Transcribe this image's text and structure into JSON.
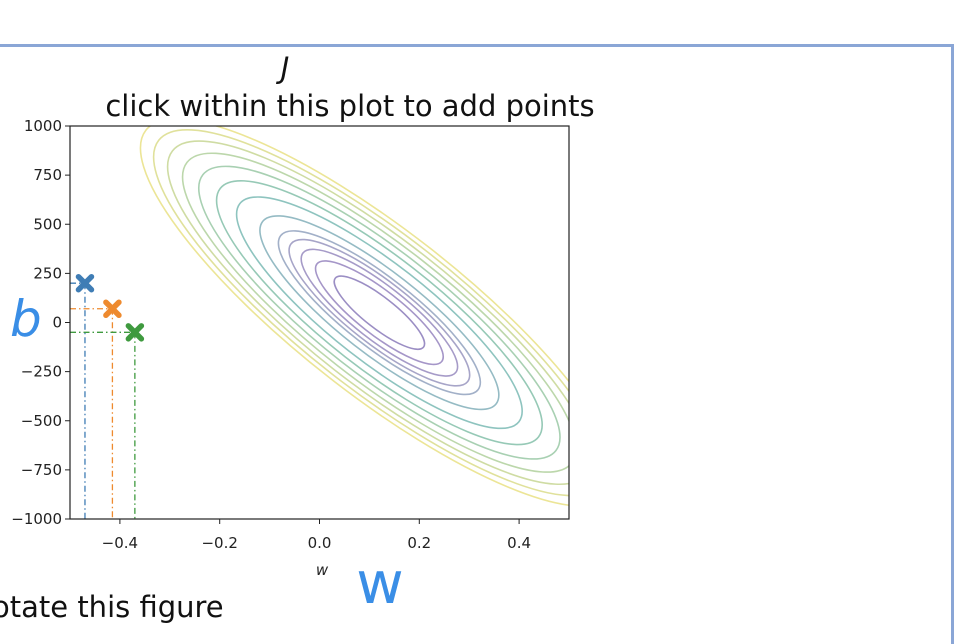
{
  "figure": {
    "annotation_b": "b",
    "annotation_w": "w",
    "caption": "otate this figure"
  },
  "chart_data": {
    "type": "contour",
    "title": "click within this plot to add points",
    "supertitle": "J",
    "xlabel": "w",
    "ylabel": "",
    "xlim": [
      -0.5,
      0.5
    ],
    "ylim": [
      -1000,
      1000
    ],
    "xticks": [
      -0.4,
      -0.2,
      0.0,
      0.2,
      0.4
    ],
    "xtick_labels": [
      "−0.4",
      "−0.2",
      "0.0",
      "0.2",
      "0.4"
    ],
    "yticks": [
      1000,
      750,
      500,
      250,
      0,
      -250,
      -500,
      -750,
      -1000
    ],
    "ytick_labels": [
      "1000",
      "750",
      "500",
      "250",
      "0",
      "−250",
      "−500",
      "−750",
      "−1000"
    ],
    "contour_center": {
      "w": 0.12,
      "b": 50
    },
    "contour_levels": [
      1,
      2,
      3,
      4,
      5,
      7,
      10,
      13,
      16,
      19,
      22,
      25,
      28
    ],
    "contour_colors": [
      "#9b8ec4",
      "#a596c8",
      "#a69bc8",
      "#a7a5c8",
      "#a2b0c8",
      "#95bbc4",
      "#8ec4bf",
      "#96c9b6",
      "#a8d0b2",
      "#bcd7ab",
      "#cfdca3",
      "#e0e19b",
      "#ece596"
    ],
    "grid": false,
    "points": [
      {
        "w": -0.47,
        "b": 200,
        "color": "#3f7db5"
      },
      {
        "w": -0.415,
        "b": 70,
        "color": "#ee8a2e"
      },
      {
        "w": -0.37,
        "b": -50,
        "color": "#3f9a3f"
      }
    ]
  }
}
